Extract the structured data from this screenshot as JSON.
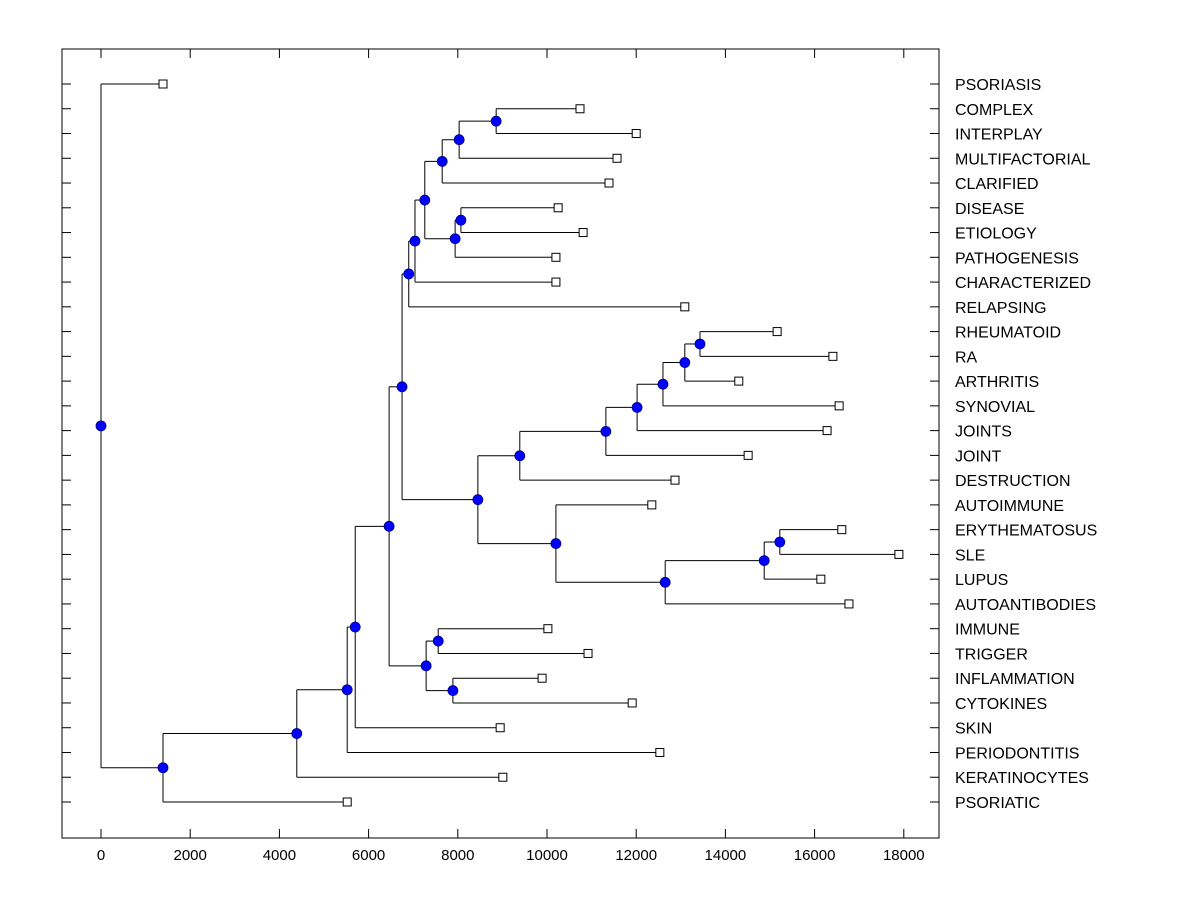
{
  "chart_data": {
    "type": "dendrogram",
    "title": "",
    "xlabel": "",
    "ylabel": "",
    "xlim": [
      -850,
      18800
    ],
    "xticks": [
      0,
      2000,
      4000,
      6000,
      8000,
      10000,
      12000,
      14000,
      16000,
      18000
    ],
    "xtick_labels": [
      "0",
      "2000",
      "4000",
      "6000",
      "8000",
      "10000",
      "12000",
      "14000",
      "16000",
      "18000"
    ],
    "grid": false,
    "colors": {
      "node_fill": "#0000ff",
      "node_stroke": "#000080",
      "line": "#000000",
      "leaf_fill": "#ffffff"
    },
    "leaves": [
      {
        "label": "PSORIASIS",
        "value": 1390
      },
      {
        "label": "COMPLEX",
        "value": 10740
      },
      {
        "label": "INTERPLAY",
        "value": 12000
      },
      {
        "label": "MULTIFACTORIAL",
        "value": 11570
      },
      {
        "label": "CLARIFIED",
        "value": 11390
      },
      {
        "label": "DISEASE",
        "value": 10250
      },
      {
        "label": "ETIOLOGY",
        "value": 10810
      },
      {
        "label": "PATHOGENESIS",
        "value": 10200
      },
      {
        "label": "CHARACTERIZED",
        "value": 10200
      },
      {
        "label": "RELAPSING",
        "value": 13090
      },
      {
        "label": "RHEUMATOID",
        "value": 15160
      },
      {
        "label": "RA",
        "value": 16410
      },
      {
        "label": "ARTHRITIS",
        "value": 14300
      },
      {
        "label": "SYNOVIAL",
        "value": 16550
      },
      {
        "label": "JOINTS",
        "value": 16280
      },
      {
        "label": "JOINT",
        "value": 14510
      },
      {
        "label": "DESTRUCTION",
        "value": 12870
      },
      {
        "label": "AUTOIMMUNE",
        "value": 12350
      },
      {
        "label": "ERYTHEMATOSUS",
        "value": 16610
      },
      {
        "label": "SLE",
        "value": 17890
      },
      {
        "label": "LUPUS",
        "value": 16140
      },
      {
        "label": "AUTOANTIBODIES",
        "value": 16770
      },
      {
        "label": "IMMUNE",
        "value": 10020
      },
      {
        "label": "TRIGGER",
        "value": 10920
      },
      {
        "label": "INFLAMMATION",
        "value": 9890
      },
      {
        "label": "CYTOKINES",
        "value": 11910
      },
      {
        "label": "SKIN",
        "value": 8950
      },
      {
        "label": "PERIODONTITIS",
        "value": 12530
      },
      {
        "label": "KERATINOCYTES",
        "value": 9010
      },
      {
        "label": "PSORIATIC",
        "value": 5520
      }
    ],
    "tree": {
      "value": 0,
      "children": [
        {
          "leaf": 0
        },
        {
          "value": 1390,
          "children": [
            {
              "value": 4390,
              "children": [
                {
                  "value": 5520,
                  "children": [
                    {
                      "value": 5700,
                      "children": [
                        {
                          "value": 6460,
                          "children": [
                            {
                              "value": 6750,
                              "children": [
                                {
                                  "value": 6900,
                                  "children": [
                                    {
                                      "value": 7040,
                                      "children": [
                                        {
                                          "value": 7260,
                                          "children": [
                                            {
                                              "value": 7650,
                                              "children": [
                                                {
                                                  "value": 8030,
                                                  "children": [
                                                    {
                                                      "value": 8860,
                                                      "children": [
                                                        {
                                                          "leaf": 1
                                                        },
                                                        {
                                                          "leaf": 2
                                                        }
                                                      ]
                                                    },
                                                    {
                                                      "leaf": 3
                                                    }
                                                  ]
                                                },
                                                {
                                                  "leaf": 4
                                                }
                                              ]
                                            },
                                            {
                                              "value": 7940,
                                              "children": [
                                                {
                                                  "value": 8070,
                                                  "children": [
                                                    {
                                                      "leaf": 5
                                                    },
                                                    {
                                                      "leaf": 6
                                                    }
                                                  ]
                                                },
                                                {
                                                  "leaf": 7
                                                }
                                              ]
                                            }
                                          ]
                                        },
                                        {
                                          "leaf": 8
                                        }
                                      ]
                                    },
                                    {
                                      "leaf": 9
                                    }
                                  ]
                                },
                                {
                                  "value": 8450,
                                  "children": [
                                    {
                                      "value": 9390,
                                      "children": [
                                        {
                                          "value": 11320,
                                          "children": [
                                            {
                                              "value": 12020,
                                              "children": [
                                                {
                                                  "value": 12600,
                                                  "children": [
                                                    {
                                                      "value": 13090,
                                                      "children": [
                                                        {
                                                          "value": 13430,
                                                          "children": [
                                                            {
                                                              "leaf": 10
                                                            },
                                                            {
                                                              "leaf": 11
                                                            }
                                                          ]
                                                        },
                                                        {
                                                          "leaf": 12
                                                        }
                                                      ]
                                                    },
                                                    {
                                                      "leaf": 13
                                                    }
                                                  ]
                                                },
                                                {
                                                  "leaf": 14
                                                }
                                              ]
                                            },
                                            {
                                              "leaf": 15
                                            }
                                          ]
                                        },
                                        {
                                          "leaf": 16
                                        }
                                      ]
                                    },
                                    {
                                      "value": 10200,
                                      "children": [
                                        {
                                          "leaf": 17
                                        },
                                        {
                                          "value": 12650,
                                          "children": [
                                            {
                                              "value": 14870,
                                              "children": [
                                                {
                                                  "value": 15220,
                                                  "children": [
                                                    {
                                                      "leaf": 18
                                                    },
                                                    {
                                                      "leaf": 19
                                                    }
                                                  ]
                                                },
                                                {
                                                  "leaf": 20
                                                }
                                              ]
                                            },
                                            {
                                              "leaf": 21
                                            }
                                          ]
                                        }
                                      ]
                                    }
                                  ]
                                }
                              ]
                            },
                            {
                              "value": 7290,
                              "children": [
                                {
                                  "value": 7560,
                                  "children": [
                                    {
                                      "leaf": 22
                                    },
                                    {
                                      "leaf": 23
                                    }
                                  ]
                                },
                                {
                                  "value": 7890,
                                  "children": [
                                    {
                                      "leaf": 24
                                    },
                                    {
                                      "leaf": 25
                                    }
                                  ]
                                }
                              ]
                            }
                          ]
                        },
                        {
                          "leaf": 26
                        }
                      ]
                    },
                    {
                      "leaf": 27
                    }
                  ]
                },
                {
                  "leaf": 28
                }
              ]
            },
            {
              "leaf": 29
            }
          ]
        }
      ]
    }
  }
}
